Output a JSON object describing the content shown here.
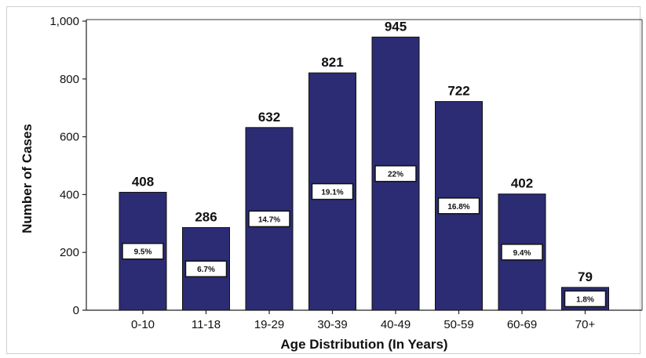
{
  "chart_data": {
    "type": "bar",
    "title": "",
    "xlabel": "Age Distribution (In Years)",
    "ylabel": "Number of Cases",
    "ylim": [
      0,
      1000
    ],
    "yticks": [
      0,
      200,
      400,
      600,
      800,
      1000
    ],
    "ytick_labels": [
      "0",
      "200",
      "400",
      "600",
      "800",
      "1,000"
    ],
    "categories": [
      "0-10",
      "11-18",
      "19-29",
      "30-39",
      "40-49",
      "50-59",
      "60-69",
      "70+"
    ],
    "values": [
      408,
      286,
      632,
      821,
      945,
      722,
      402,
      79
    ],
    "value_labels": [
      "408",
      "286",
      "632",
      "821",
      "945",
      "722",
      "402",
      "79"
    ],
    "percent_labels": [
      "9.5%",
      "6.7%",
      "14.7%",
      "19.1%",
      "22%",
      "16.8%",
      "9.4%",
      "1.8%"
    ],
    "bar_color": "#2b2c73",
    "grid": false,
    "legend": "none"
  }
}
